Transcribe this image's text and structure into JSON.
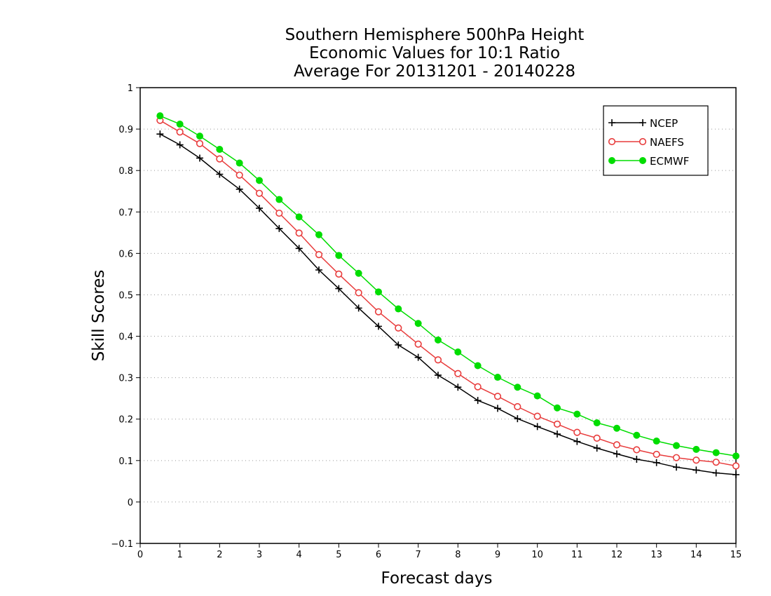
{
  "chart_data": {
    "type": "line",
    "title_lines": [
      "Southern Hemisphere 500hPa Height",
      "Economic Values for 10:1 Ratio",
      "Average For 20131201 - 20140228"
    ],
    "xlabel": "Forecast days",
    "ylabel": "Skill Scores",
    "xlim": [
      0,
      15
    ],
    "ylim": [
      -0.1,
      1
    ],
    "xticks": [
      "0",
      "1",
      "2",
      "3",
      "4",
      "5",
      "6",
      "7",
      "8",
      "9",
      "10",
      "11",
      "12",
      "13",
      "14",
      "15"
    ],
    "yticks": [
      "−0.1",
      "0",
      "0.1",
      "0.2",
      "0.3",
      "0.4",
      "0.5",
      "0.6",
      "0.7",
      "0.8",
      "0.9",
      "1"
    ],
    "grid": "horizontal-dotted",
    "legend_position": "top-right",
    "x": [
      0.5,
      1,
      1.5,
      2,
      2.5,
      3,
      3.5,
      4,
      4.5,
      5,
      5.5,
      6,
      6.5,
      7,
      7.5,
      8,
      8.5,
      9,
      9.5,
      10,
      10.5,
      11,
      11.5,
      12,
      12.5,
      13,
      13.5,
      14,
      14.5,
      15
    ],
    "series": [
      {
        "name": "NCEP",
        "color": "#000000",
        "marker": "plus",
        "values": [
          0.888,
          0.862,
          0.83,
          0.791,
          0.755,
          0.709,
          0.66,
          0.612,
          0.56,
          0.515,
          0.468,
          0.424,
          0.379,
          0.349,
          0.306,
          0.277,
          0.245,
          0.226,
          0.201,
          0.182,
          0.164,
          0.146,
          0.13,
          0.116,
          0.103,
          0.095,
          0.084,
          0.077,
          0.07,
          0.066
        ]
      },
      {
        "name": "NAEFS",
        "color": "#e83c3c",
        "marker": "open-circle",
        "values": [
          0.921,
          0.893,
          0.865,
          0.828,
          0.789,
          0.745,
          0.697,
          0.649,
          0.597,
          0.55,
          0.505,
          0.459,
          0.42,
          0.381,
          0.343,
          0.31,
          0.278,
          0.255,
          0.23,
          0.207,
          0.188,
          0.168,
          0.154,
          0.138,
          0.126,
          0.115,
          0.107,
          0.101,
          0.096,
          0.087
        ]
      },
      {
        "name": "ECMWF",
        "color": "#00dd00",
        "marker": "filled-circle",
        "values": [
          0.932,
          0.912,
          0.883,
          0.851,
          0.818,
          0.776,
          0.73,
          0.688,
          0.645,
          0.595,
          0.552,
          0.507,
          0.466,
          0.431,
          0.391,
          0.362,
          0.329,
          0.301,
          0.277,
          0.256,
          0.227,
          0.212,
          0.191,
          0.178,
          0.161,
          0.147,
          0.136,
          0.127,
          0.119,
          0.111
        ]
      }
    ]
  }
}
